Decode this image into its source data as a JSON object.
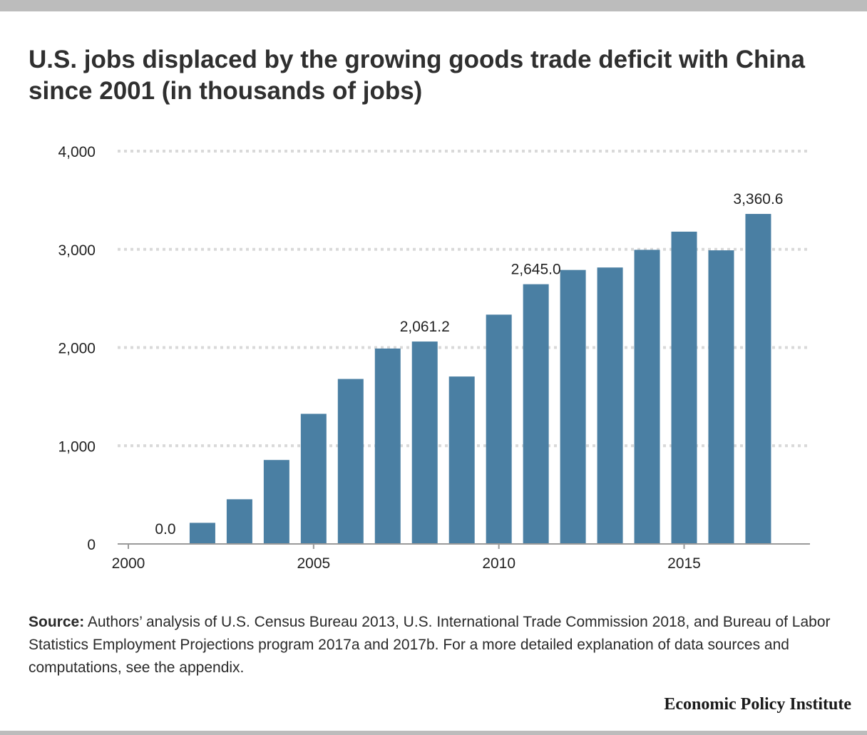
{
  "title": "U.S. jobs displaced by the growing goods trade deficit with China since 2001 (in thousands of jobs)",
  "source": {
    "label": "Source:",
    "text": " Authors’ analysis of U.S. Census Bureau 2013, U.S. International Trade Commission 2018, and Bureau of Labor Statistics Employment Projections program 2017a and 2017b. For a more detailed explanation of data sources and computations, see the appendix."
  },
  "brand": "Economic Policy Institute",
  "colors": {
    "bar": "#4a7fa3",
    "grid": "#d9d9d9",
    "axis": "#9a9a9a",
    "frame": "#bcbcbc"
  },
  "chart_data": {
    "type": "bar",
    "title": "U.S. jobs displaced by the growing goods trade deficit with China since 2001 (in thousands of jobs)",
    "xlabel": "",
    "ylabel": "",
    "x": [
      2001,
      2002,
      2003,
      2004,
      2005,
      2006,
      2007,
      2008,
      2009,
      2010,
      2011,
      2012,
      2013,
      2014,
      2015,
      2016,
      2017
    ],
    "values": [
      0.0,
      215,
      455,
      855,
      1325,
      1680,
      1990,
      2061.2,
      1705,
      2335,
      2645.0,
      2790,
      2815,
      2995,
      3180,
      2990,
      3360.6
    ],
    "xlim": [
      2000,
      2018.3
    ],
    "ylim": [
      0,
      4000
    ],
    "xticks": [
      "2000",
      "2005",
      "2010",
      "2015"
    ],
    "yticks": [
      "0",
      "1,000",
      "2,000",
      "3,000",
      "4,000"
    ],
    "data_labels": [
      {
        "year": 2001,
        "text": "0.0"
      },
      {
        "year": 2008,
        "text": "2,061.2"
      },
      {
        "year": 2011,
        "text": "2,645.0"
      },
      {
        "year": 2017,
        "text": "3,360.6"
      }
    ],
    "grid": true,
    "legend": "none"
  }
}
